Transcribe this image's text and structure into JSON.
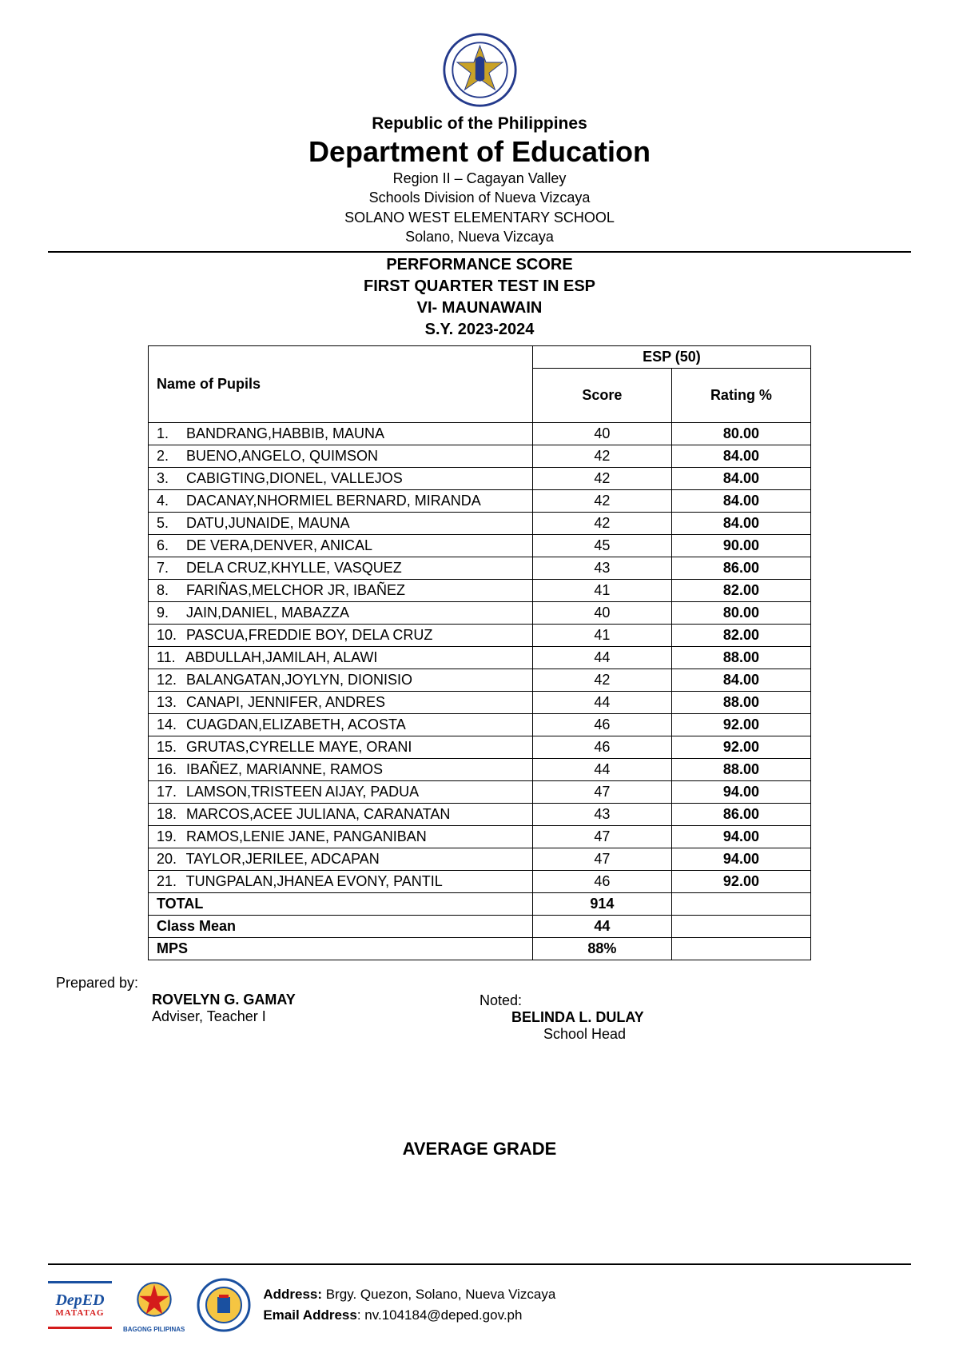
{
  "header": {
    "republic": "Republic of the Philippines",
    "department": "Department of Education",
    "region": "Region II – Cagayan Valley",
    "division": "Schools Division of Nueva Vizcaya",
    "school": "SOLANO WEST ELEMENTARY SCHOOL",
    "location": "Solano, Nueva Vizcaya"
  },
  "subheader": {
    "l1": "PERFORMANCE SCORE",
    "l2": "FIRST QUARTER TEST IN ESP",
    "l3": "VI- MAUNAWAIN",
    "l4": "S.Y. 2023-2024"
  },
  "table": {
    "subject_header": "ESP (50)",
    "name_header": "Name of Pupils",
    "score_header": "Score",
    "rating_header": "Rating %",
    "rows": [
      {
        "n": "1.",
        "name": "BANDRANG,HABBIB, MAUNA",
        "score": "40",
        "rating": "80.00"
      },
      {
        "n": "2.",
        "name": "BUENO,ANGELO, QUIMSON",
        "score": "42",
        "rating": "84.00"
      },
      {
        "n": "3.",
        "name": "CABIGTING,DIONEL, VALLEJOS",
        "score": "42",
        "rating": "84.00"
      },
      {
        "n": "4.",
        "name": "DACANAY,NHORMIEL BERNARD, MIRANDA",
        "score": "42",
        "rating": "84.00"
      },
      {
        "n": "5.",
        "name": "DATU,JUNAIDE, MAUNA",
        "score": "42",
        "rating": "84.00"
      },
      {
        "n": "6.",
        "name": "DE VERA,DENVER, ANICAL",
        "score": "45",
        "rating": "90.00"
      },
      {
        "n": "7.",
        "name": "DELA CRUZ,KHYLLE, VASQUEZ",
        "score": "43",
        "rating": "86.00"
      },
      {
        "n": "8.",
        "name": "FARIÑAS,MELCHOR JR, IBAÑEZ",
        "score": "41",
        "rating": "82.00"
      },
      {
        "n": "9.",
        "name": "JAIN,DANIEL, MABAZZA",
        "score": "40",
        "rating": "80.00"
      },
      {
        "n": "10.",
        "name": "PASCUA,FREDDIE BOY, DELA CRUZ",
        "score": "41",
        "rating": "82.00"
      },
      {
        "n": "11.",
        "name": "ABDULLAH,JAMILAH, ALAWI",
        "score": "44",
        "rating": "88.00"
      },
      {
        "n": "12.",
        "name": "BALANGATAN,JOYLYN, DIONISIO",
        "score": "42",
        "rating": "84.00"
      },
      {
        "n": "13.",
        "name": "CANAPI, JENNIFER, ANDRES",
        "score": "44",
        "rating": "88.00"
      },
      {
        "n": "14.",
        "name": "CUAGDAN,ELIZABETH, ACOSTA",
        "score": "46",
        "rating": "92.00"
      },
      {
        "n": "15.",
        "name": "GRUTAS,CYRELLE MAYE, ORANI",
        "score": "46",
        "rating": "92.00"
      },
      {
        "n": "16.",
        "name": "IBAÑEZ, MARIANNE, RAMOS",
        "score": "44",
        "rating": "88.00"
      },
      {
        "n": "17.",
        "name": "LAMSON,TRISTEEN AIJAY, PADUA",
        "score": "47",
        "rating": "94.00"
      },
      {
        "n": "18.",
        "name": "MARCOS,ACEE JULIANA, CARANATAN",
        "score": "43",
        "rating": "86.00"
      },
      {
        "n": "19.",
        "name": "RAMOS,LENIE JANE, PANGANIBAN",
        "score": "47",
        "rating": "94.00"
      },
      {
        "n": "20.",
        "name": "TAYLOR,JERILEE, ADCAPAN",
        "score": "47",
        "rating": "94.00"
      },
      {
        "n": "21.",
        "name": "TUNGPALAN,JHANEA EVONY, PANTIL",
        "score": "46",
        "rating": "92.00"
      }
    ],
    "total_label": "TOTAL",
    "total_score": "914",
    "mean_label": "Class Mean",
    "mean_score": "44",
    "mps_label": "MPS",
    "mps_score": "88%"
  },
  "signatures": {
    "prepared_by": "Prepared by:",
    "adviser_name": "ROVELYN G. GAMAY",
    "adviser_title": "Adviser, Teacher I",
    "noted": "Noted:",
    "head_name": "BELINDA L. DULAY",
    "head_title": "School Head"
  },
  "footer_heading": "AVERAGE GRADE",
  "footer": {
    "address_label": "Address:",
    "address": " Brgy. Quezon, Solano, Nueva Vizcaya",
    "email_label": "Email Address",
    "email": ": nv.104184@deped.gov.ph",
    "deped_top": "DepED",
    "deped_bottom": "MATATAG",
    "bagong": "BAGONG PILIPINAS"
  }
}
